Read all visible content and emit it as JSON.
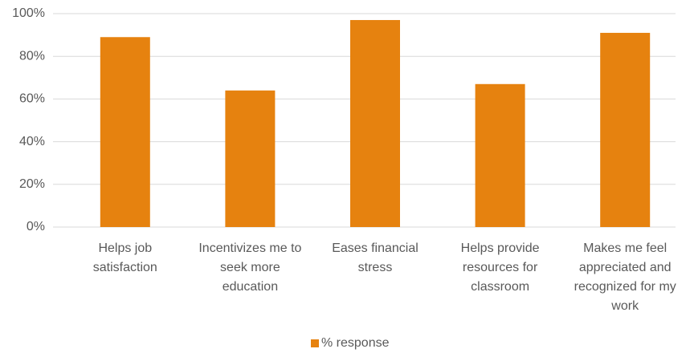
{
  "chart_data": {
    "type": "bar",
    "categories": [
      "Helps job satisfaction",
      "Incentivizes me to seek more education",
      "Eases financial stress",
      "Helps provide resources for classroom",
      "Makes me feel appreciated and recognized for my work"
    ],
    "series": [
      {
        "name": "% response",
        "color": "#e6820f",
        "values": [
          89,
          64,
          97,
          67,
          91
        ]
      }
    ],
    "ylim": [
      0,
      100
    ],
    "yticks": [
      {
        "value": 0,
        "label": "0%"
      },
      {
        "value": 20,
        "label": "20%"
      },
      {
        "value": 40,
        "label": "40%"
      },
      {
        "value": 60,
        "label": "60%"
      },
      {
        "value": 80,
        "label": "80%"
      },
      {
        "value": 100,
        "label": "100%"
      }
    ],
    "grid": true,
    "legend": "bottom"
  }
}
